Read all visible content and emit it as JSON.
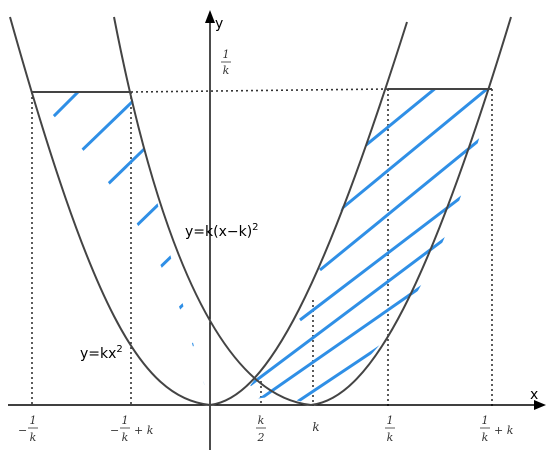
{
  "axes": {
    "x_label": "x",
    "y_label": "y"
  },
  "curves": {
    "parabola_1": "y=kx",
    "parabola_1_exp": "2",
    "parabola_2": "y=k(x−k)",
    "parabola_2_exp": "2"
  },
  "y_tick": {
    "num": "1",
    "den": "k"
  },
  "x_ticks": {
    "neg_inv_k": {
      "sign": "−",
      "num": "1",
      "den": "k"
    },
    "neg_inv_k_plus_k": {
      "sign": "−",
      "num": "1",
      "den": "k",
      "tail": "+ k"
    },
    "half_k": {
      "num": "k",
      "den": "2"
    },
    "k": "k",
    "inv_k": {
      "num": "1",
      "den": "k"
    },
    "inv_k_plus_k": {
      "num": "1",
      "den": "k",
      "tail": "+ k"
    }
  },
  "colors": {
    "curve": "#444444",
    "axis": "#000000",
    "hatch": "#2f8fe6",
    "guide": "#333333"
  }
}
